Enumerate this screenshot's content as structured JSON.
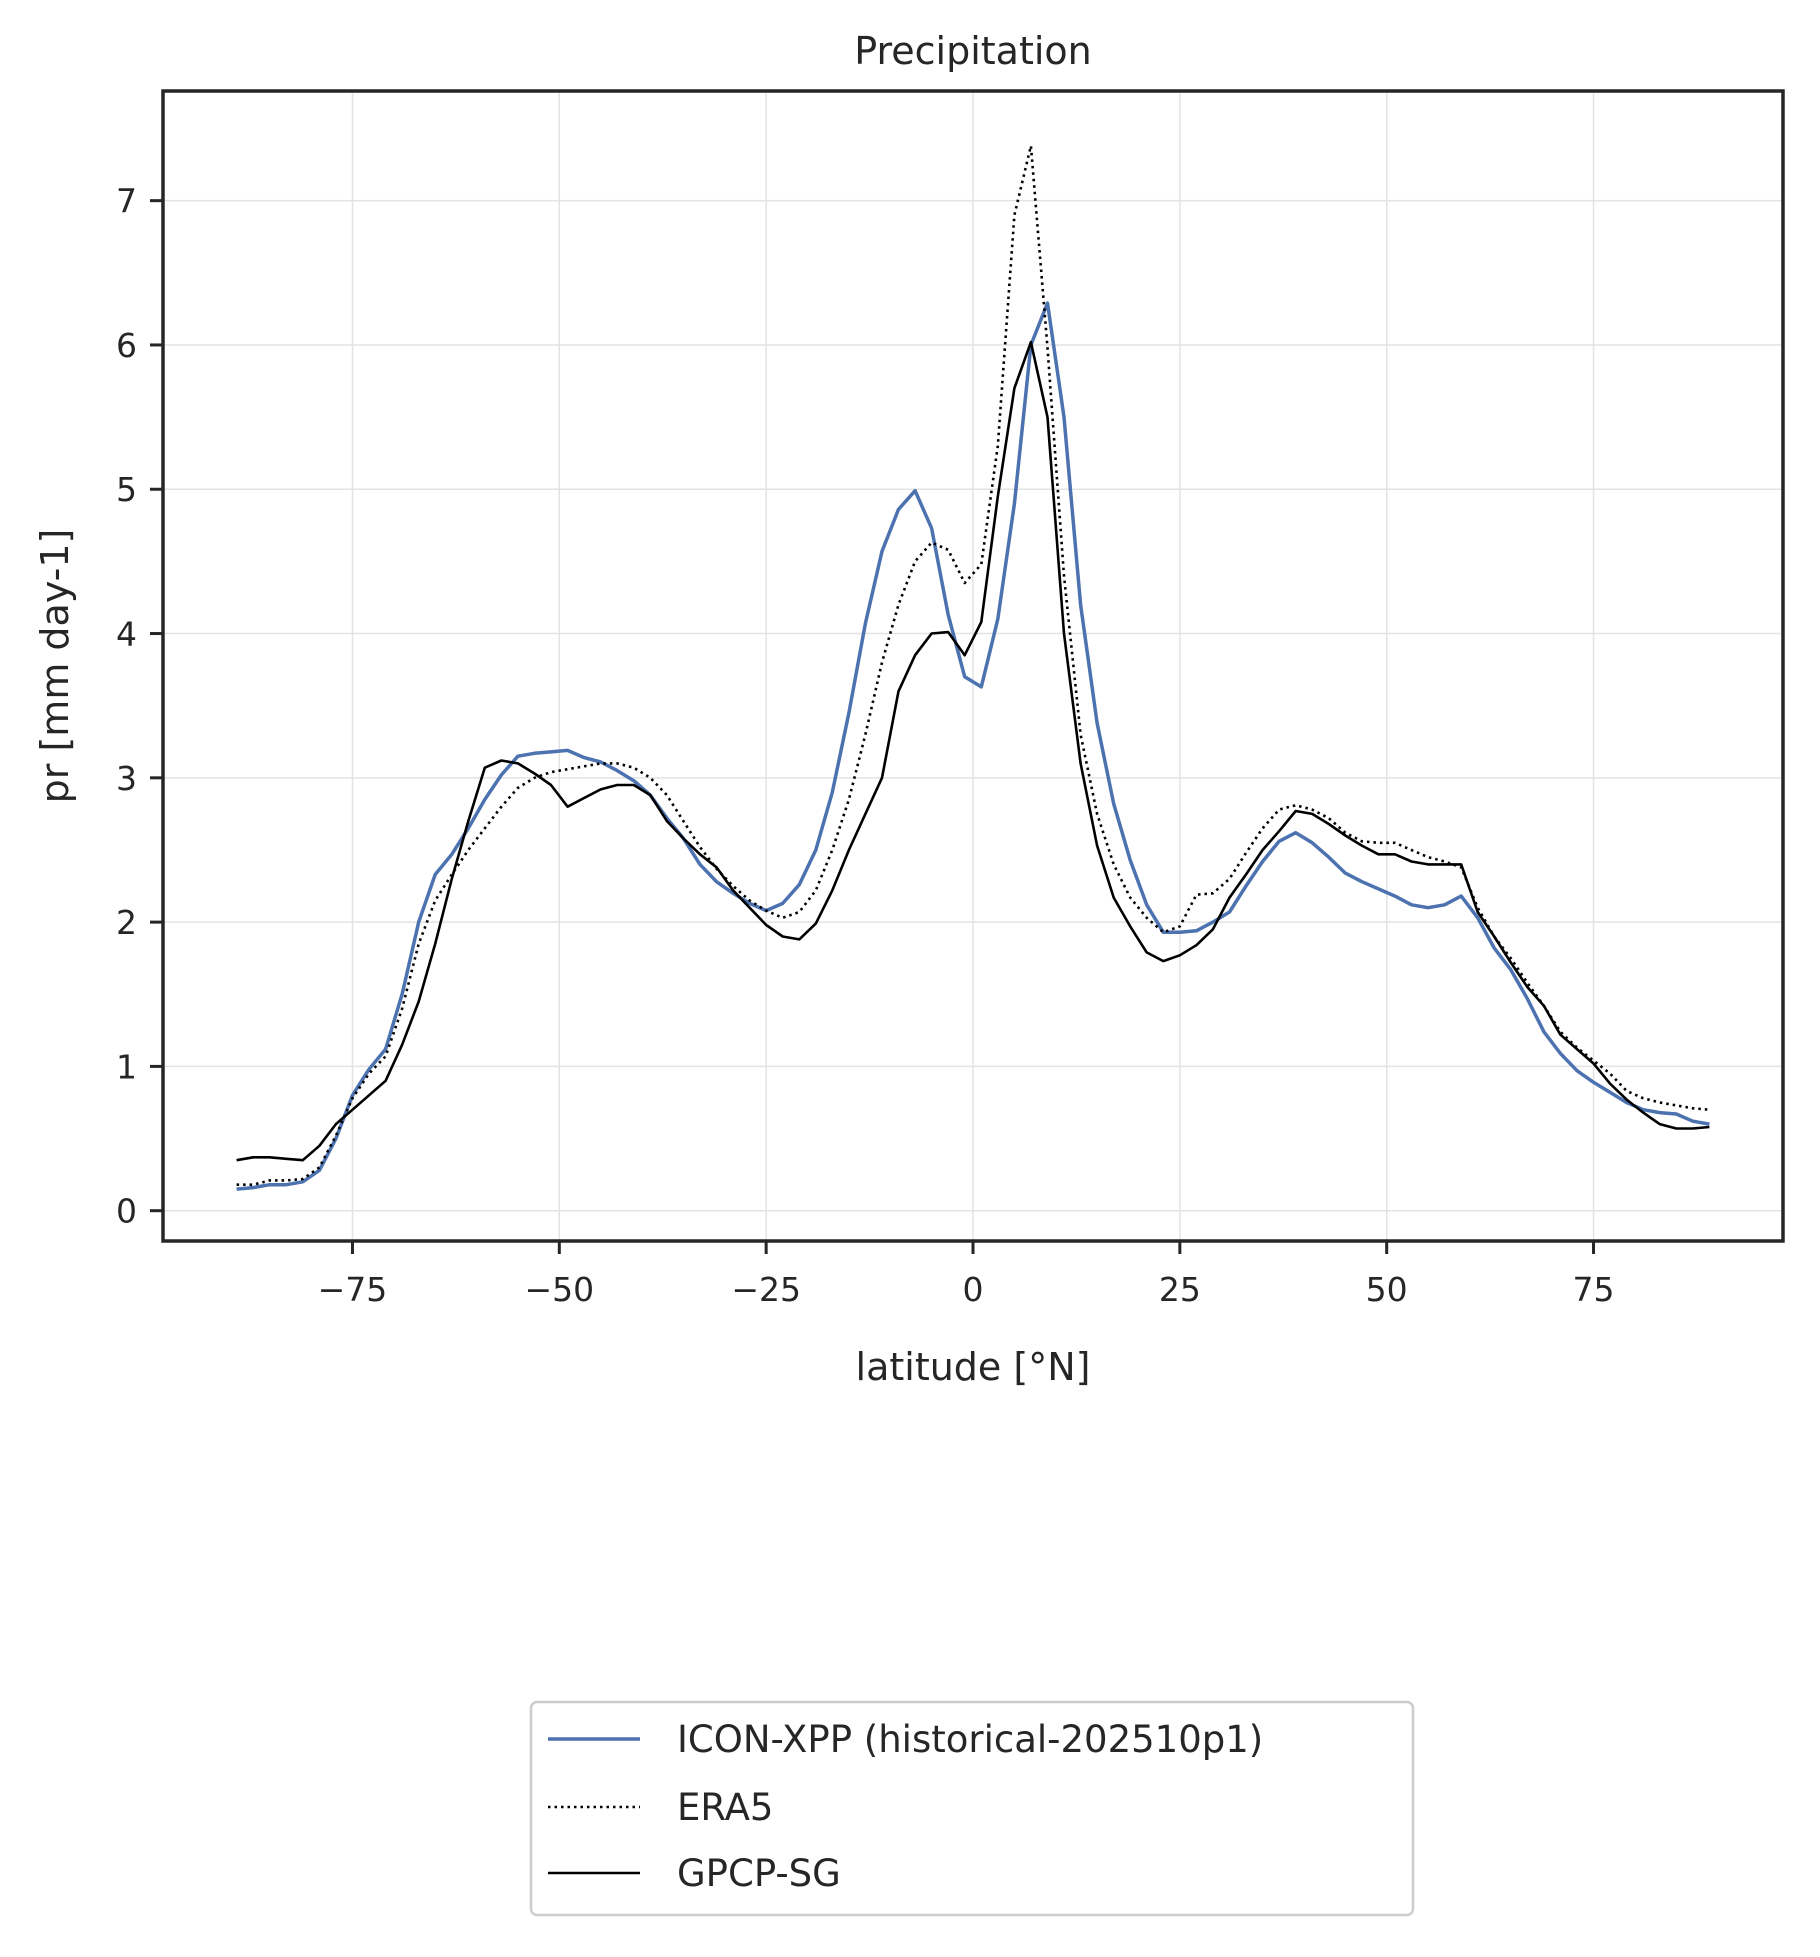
{
  "chart_data": {
    "type": "line",
    "title": "Precipitation",
    "xlabel": "latitude [°N]",
    "ylabel": "pr [mm day-1]",
    "xlim": [
      -97.9,
      97.9
    ],
    "ylim": [
      -0.21,
      7.76
    ],
    "xticks": [
      -75,
      -50,
      -25,
      0,
      25,
      50,
      75
    ],
    "xtick_labels": [
      "−75",
      "−50",
      "−25",
      "0",
      "25",
      "50",
      "75"
    ],
    "yticks": [
      0,
      1,
      2,
      3,
      4,
      5,
      6,
      7
    ],
    "ytick_labels": [
      "0",
      "1",
      "2",
      "3",
      "4",
      "5",
      "6",
      "7"
    ],
    "grid": true,
    "legend_position": "bottom-center-outside",
    "x": [
      -89,
      -87,
      -85,
      -83,
      -81,
      -79,
      -77,
      -75,
      -73,
      -71,
      -69,
      -67,
      -65,
      -63,
      -61,
      -59,
      -57,
      -55,
      -53,
      -51,
      -49,
      -47,
      -45,
      -43,
      -41,
      -39,
      -37,
      -35,
      -33,
      -31,
      -29,
      -27,
      -25,
      -23,
      -21,
      -19,
      -17,
      -15,
      -13,
      -11,
      -9,
      -7,
      -5,
      -3,
      -1,
      1,
      3,
      5,
      7,
      9,
      11,
      13,
      15,
      17,
      19,
      21,
      23,
      25,
      27,
      29,
      31,
      33,
      35,
      37,
      39,
      41,
      43,
      45,
      47,
      49,
      51,
      53,
      55,
      57,
      59,
      61,
      63,
      65,
      67,
      69,
      71,
      73,
      75,
      77,
      79,
      81,
      83,
      85,
      87,
      89
    ],
    "series": [
      {
        "name": "ICON-XPP (historical-202510p1)",
        "color": "#4c72b0",
        "style": "solid",
        "values": [
          0.15,
          0.16,
          0.18,
          0.18,
          0.2,
          0.28,
          0.5,
          0.8,
          0.98,
          1.12,
          1.5,
          2.0,
          2.33,
          2.47,
          2.65,
          2.85,
          3.02,
          3.15,
          3.17,
          3.18,
          3.19,
          3.14,
          3.11,
          3.05,
          2.98,
          2.88,
          2.72,
          2.58,
          2.4,
          2.28,
          2.2,
          2.13,
          2.08,
          2.13,
          2.26,
          2.5,
          2.9,
          3.45,
          4.07,
          4.57,
          4.86,
          4.99,
          4.73,
          4.13,
          3.7,
          3.63,
          4.1,
          4.9,
          6.0,
          6.29,
          5.5,
          4.2,
          3.38,
          2.82,
          2.43,
          2.12,
          1.93,
          1.93,
          1.94,
          2.0,
          2.07,
          2.25,
          2.42,
          2.56,
          2.62,
          2.55,
          2.45,
          2.34,
          2.28,
          2.23,
          2.18,
          2.12,
          2.1,
          2.12,
          2.18,
          2.03,
          1.82,
          1.67,
          1.47,
          1.24,
          1.09,
          0.97,
          0.89,
          0.82,
          0.75,
          0.7,
          0.68,
          0.67,
          0.62,
          0.6
        ]
      },
      {
        "name": "ERA5",
        "color": "#000000",
        "style": "dotted",
        "values": [
          0.18,
          0.18,
          0.21,
          0.21,
          0.22,
          0.3,
          0.52,
          0.78,
          0.95,
          1.07,
          1.4,
          1.85,
          2.15,
          2.33,
          2.5,
          2.65,
          2.8,
          2.93,
          3.0,
          3.04,
          3.06,
          3.08,
          3.1,
          3.1,
          3.07,
          3.0,
          2.88,
          2.7,
          2.52,
          2.37,
          2.25,
          2.15,
          2.08,
          2.03,
          2.07,
          2.22,
          2.5,
          2.85,
          3.3,
          3.8,
          4.2,
          4.5,
          4.63,
          4.58,
          4.35,
          4.48,
          5.3,
          6.9,
          7.38,
          5.98,
          4.4,
          3.3,
          2.75,
          2.4,
          2.17,
          2.03,
          1.93,
          1.97,
          2.19,
          2.2,
          2.3,
          2.48,
          2.65,
          2.78,
          2.81,
          2.78,
          2.72,
          2.62,
          2.56,
          2.55,
          2.55,
          2.5,
          2.45,
          2.42,
          2.38,
          2.1,
          1.9,
          1.75,
          1.58,
          1.42,
          1.24,
          1.13,
          1.04,
          0.95,
          0.83,
          0.78,
          0.75,
          0.73,
          0.71,
          0.7
        ]
      },
      {
        "name": "GPCP-SG",
        "color": "#000000",
        "style": "solid",
        "values": [
          0.35,
          0.37,
          0.37,
          0.36,
          0.35,
          0.45,
          0.6,
          0.7,
          0.8,
          0.9,
          1.15,
          1.45,
          1.85,
          2.3,
          2.7,
          3.07,
          3.12,
          3.1,
          3.03,
          2.95,
          2.8,
          2.86,
          2.92,
          2.95,
          2.95,
          2.88,
          2.7,
          2.58,
          2.47,
          2.38,
          2.22,
          2.1,
          1.98,
          1.9,
          1.88,
          1.99,
          2.22,
          2.5,
          2.75,
          3.0,
          3.6,
          3.85,
          4.0,
          4.01,
          3.85,
          4.08,
          4.95,
          5.7,
          6.02,
          5.5,
          4.0,
          3.1,
          2.53,
          2.17,
          1.97,
          1.79,
          1.73,
          1.77,
          1.84,
          1.95,
          2.17,
          2.33,
          2.5,
          2.63,
          2.77,
          2.75,
          2.68,
          2.6,
          2.53,
          2.47,
          2.47,
          2.42,
          2.4,
          2.4,
          2.4,
          2.07,
          1.9,
          1.72,
          1.55,
          1.42,
          1.22,
          1.12,
          1.02,
          0.88,
          0.77,
          0.68,
          0.6,
          0.57,
          0.57,
          0.58
        ]
      }
    ]
  }
}
